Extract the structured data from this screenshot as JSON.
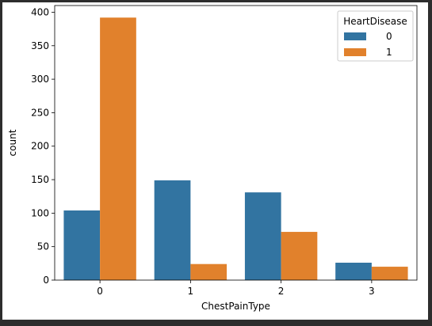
{
  "chart_data": {
    "type": "bar",
    "title": "",
    "xlabel": "ChestPainType",
    "ylabel": "count",
    "categories": [
      "0",
      "1",
      "2",
      "3"
    ],
    "series": [
      {
        "name": "0",
        "values": [
          104,
          149,
          131,
          26
        ],
        "color": "#3274a1"
      },
      {
        "name": "1",
        "values": [
          392,
          24,
          72,
          20
        ],
        "color": "#e1812c"
      }
    ],
    "ylim": [
      0,
      410
    ],
    "yticks": [
      0,
      50,
      100,
      150,
      200,
      250,
      300,
      350,
      400
    ],
    "grid": false,
    "legend": {
      "title": "HeartDisease",
      "placement": "top-right"
    }
  }
}
